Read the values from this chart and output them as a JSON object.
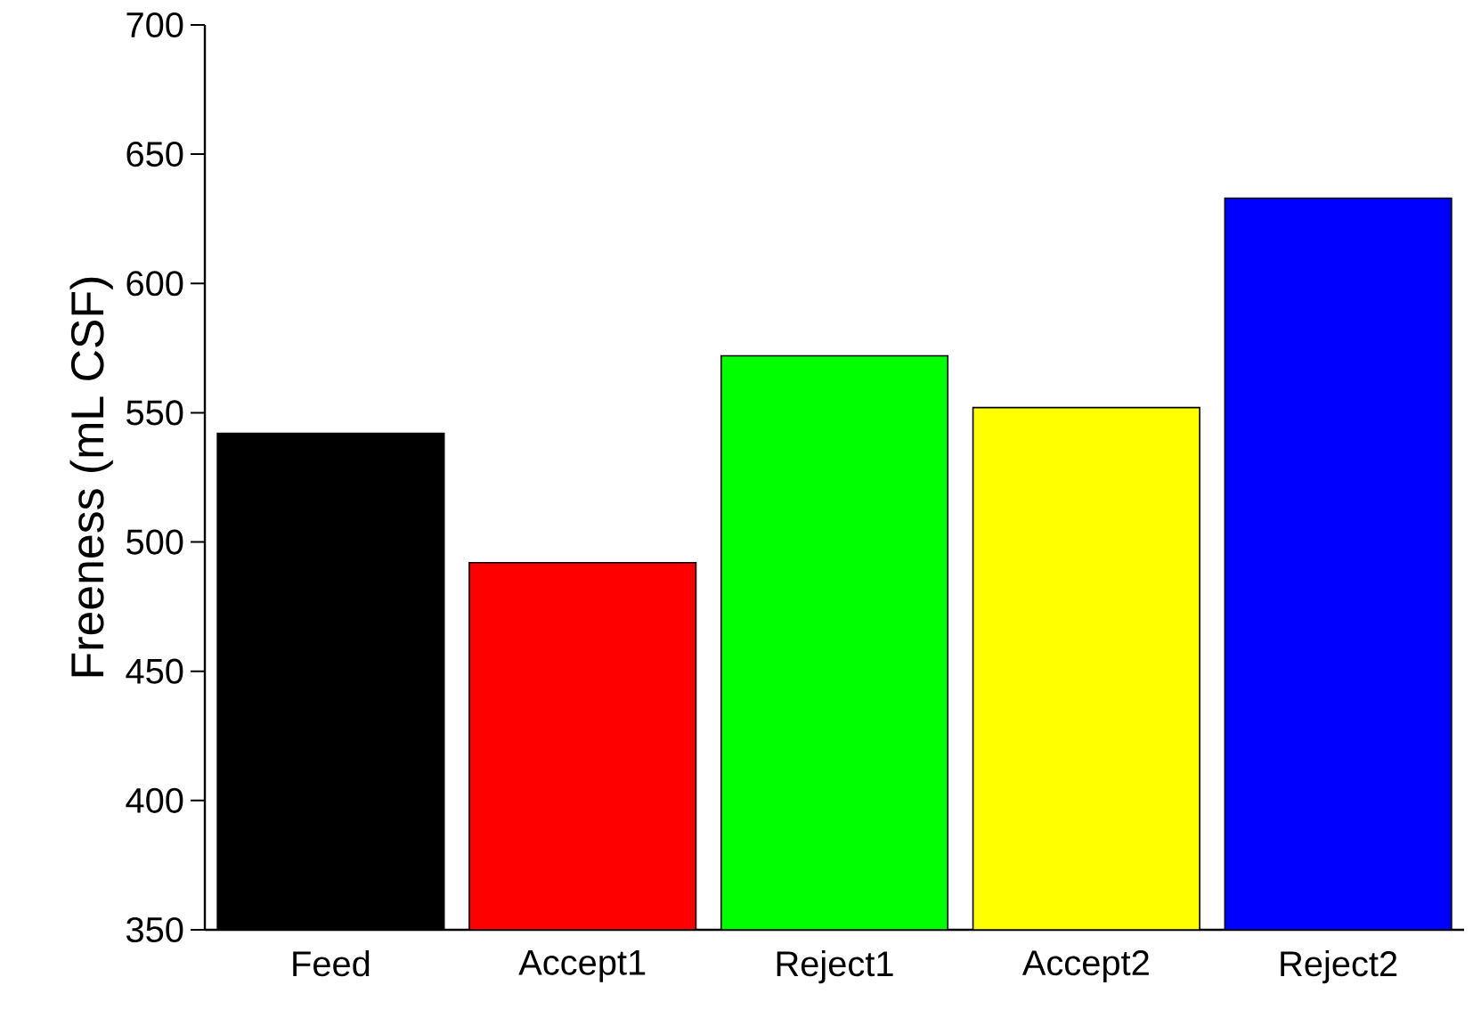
{
  "chart_data": {
    "type": "bar",
    "ylabel": "Freeness (mL CSF)",
    "categories": [
      "Feed",
      "Accept1",
      "Reject1",
      "Accept2",
      "Reject2"
    ],
    "values": [
      542,
      492,
      572,
      552,
      633
    ],
    "colors": [
      "#000000",
      "#ff0000",
      "#00ff00",
      "#ffff00",
      "#0000ff"
    ],
    "ylim": [
      350,
      700
    ],
    "yticks": [
      350,
      400,
      450,
      500,
      550,
      600,
      650,
      700
    ],
    "grid": false
  }
}
